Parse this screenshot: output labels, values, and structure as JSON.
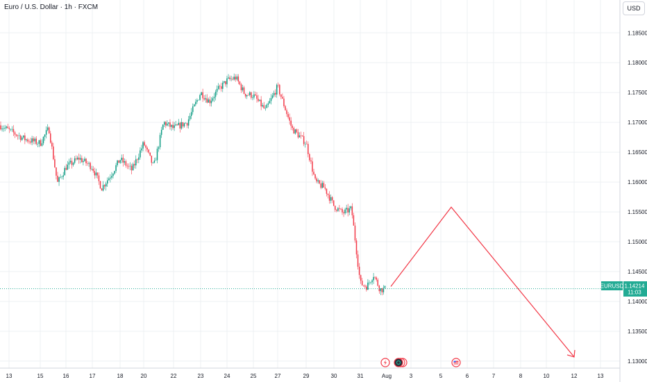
{
  "header": {
    "symbol_title": "Euro / U.S. Dollar · 1h · FXCM",
    "currency_button": "USD"
  },
  "price_tag": {
    "symbol": "EURUSD",
    "price": "1.14214",
    "countdown": "11:03"
  },
  "colors": {
    "up": "#089981",
    "down": "#f23645",
    "arrow": "#f23645",
    "grid": "#eef0f3",
    "axis_text": "#131722",
    "last_price": "#22ab94"
  },
  "event_icons": [
    "flash-icon",
    "economic-event-icon",
    "flag-icon"
  ],
  "chart_data": {
    "type": "candlestick",
    "title": "Euro / U.S. Dollar · 1h · FXCM",
    "symbol": "EURUSD",
    "x_tick_labels": [
      "13",
      "15",
      "16",
      "17",
      "18",
      "20",
      "22",
      "23",
      "24",
      "25",
      "27",
      "29",
      "30",
      "31",
      "Aug",
      "3",
      "5",
      "6",
      "7",
      "8",
      "10",
      "12",
      "13"
    ],
    "y_tick_labels": [
      "1.18500",
      "1.18000",
      "1.17500",
      "1.17000",
      "1.16500",
      "1.16000",
      "1.15500",
      "1.15000",
      "1.14500",
      "1.14000",
      "1.13500",
      "1.13000"
    ],
    "ylim": [
      1.1265,
      1.1905
    ],
    "last_price": 1.14214,
    "grid": true,
    "price_path": [
      [
        "13",
        1.1695
      ],
      [
        "13",
        1.1672
      ],
      [
        "15",
        1.1665
      ],
      [
        "15",
        1.169
      ],
      [
        "15",
        1.1598
      ],
      [
        "16",
        1.1625
      ],
      [
        "16",
        1.164
      ],
      [
        "17",
        1.1625
      ],
      [
        "17",
        1.159
      ],
      [
        "17",
        1.1612
      ],
      [
        "18",
        1.1638
      ],
      [
        "18",
        1.162
      ],
      [
        "20",
        1.1665
      ],
      [
        "20",
        1.1625
      ],
      [
        "20",
        1.17
      ],
      [
        "22",
        1.169
      ],
      [
        "22",
        1.17
      ],
      [
        "23",
        1.175
      ],
      [
        "23",
        1.1735
      ],
      [
        "23",
        1.1755
      ],
      [
        "24",
        1.177
      ],
      [
        "24",
        1.1775
      ],
      [
        "24",
        1.1748
      ],
      [
        "25",
        1.1745
      ],
      [
        "25",
        1.172
      ],
      [
        "27",
        1.176
      ],
      [
        "27",
        1.169
      ],
      [
        "29",
        1.1665
      ],
      [
        "29",
        1.16
      ],
      [
        "29",
        1.159
      ],
      [
        "30",
        1.156
      ],
      [
        "30",
        1.1548
      ],
      [
        "30",
        1.1555
      ],
      [
        "31",
        1.143
      ],
      [
        "31",
        1.1425
      ],
      [
        "31",
        1.1445
      ],
      [
        "31",
        1.142
      ],
      [
        "Aug",
        1.1421
      ]
    ],
    "annotations": [
      {
        "type": "arrow-path",
        "points": [
          [
            "Aug",
            1.1425
          ],
          [
            "5",
            1.1558
          ],
          [
            "12",
            1.1307
          ]
        ]
      }
    ]
  }
}
